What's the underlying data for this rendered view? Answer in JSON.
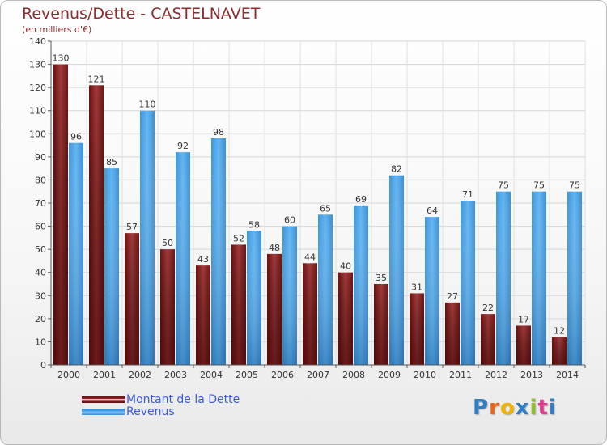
{
  "title": "Revenus/Dette - CASTELNAVET",
  "subtitle": "(en milliers d'€)",
  "colors": {
    "dette": "#8b2525",
    "revenus": "#4aa3e8"
  },
  "logo": {
    "text": "Proxiti",
    "letter_colors": [
      "#2f7ec2",
      "#e8661a",
      "#f0b400",
      "#2f7ec2",
      "#8cbd2a",
      "#e03a8c",
      "#2f7ec2"
    ]
  },
  "chart_data": {
    "type": "bar",
    "title": "Revenus/Dette - CASTELNAVET",
    "subtitle": "(en milliers d'€)",
    "categories": [
      "2000",
      "2001",
      "2002",
      "2003",
      "2004",
      "2005",
      "2006",
      "2007",
      "2008",
      "2009",
      "2010",
      "2011",
      "2012",
      "2013",
      "2014"
    ],
    "series": [
      {
        "name": "Montant de la Dette",
        "values": [
          130,
          121,
          57,
          50,
          43,
          52,
          48,
          44,
          40,
          35,
          31,
          27,
          22,
          17,
          12
        ]
      },
      {
        "name": "Revenus",
        "values": [
          96,
          85,
          110,
          92,
          98,
          58,
          60,
          65,
          69,
          82,
          64,
          71,
          75,
          75,
          75
        ]
      }
    ],
    "ylim": [
      0,
      140
    ],
    "yticks": [
      0,
      10,
      20,
      30,
      40,
      50,
      60,
      70,
      80,
      90,
      100,
      110,
      120,
      130,
      140
    ],
    "grid": true,
    "legend": "bottom-left"
  }
}
